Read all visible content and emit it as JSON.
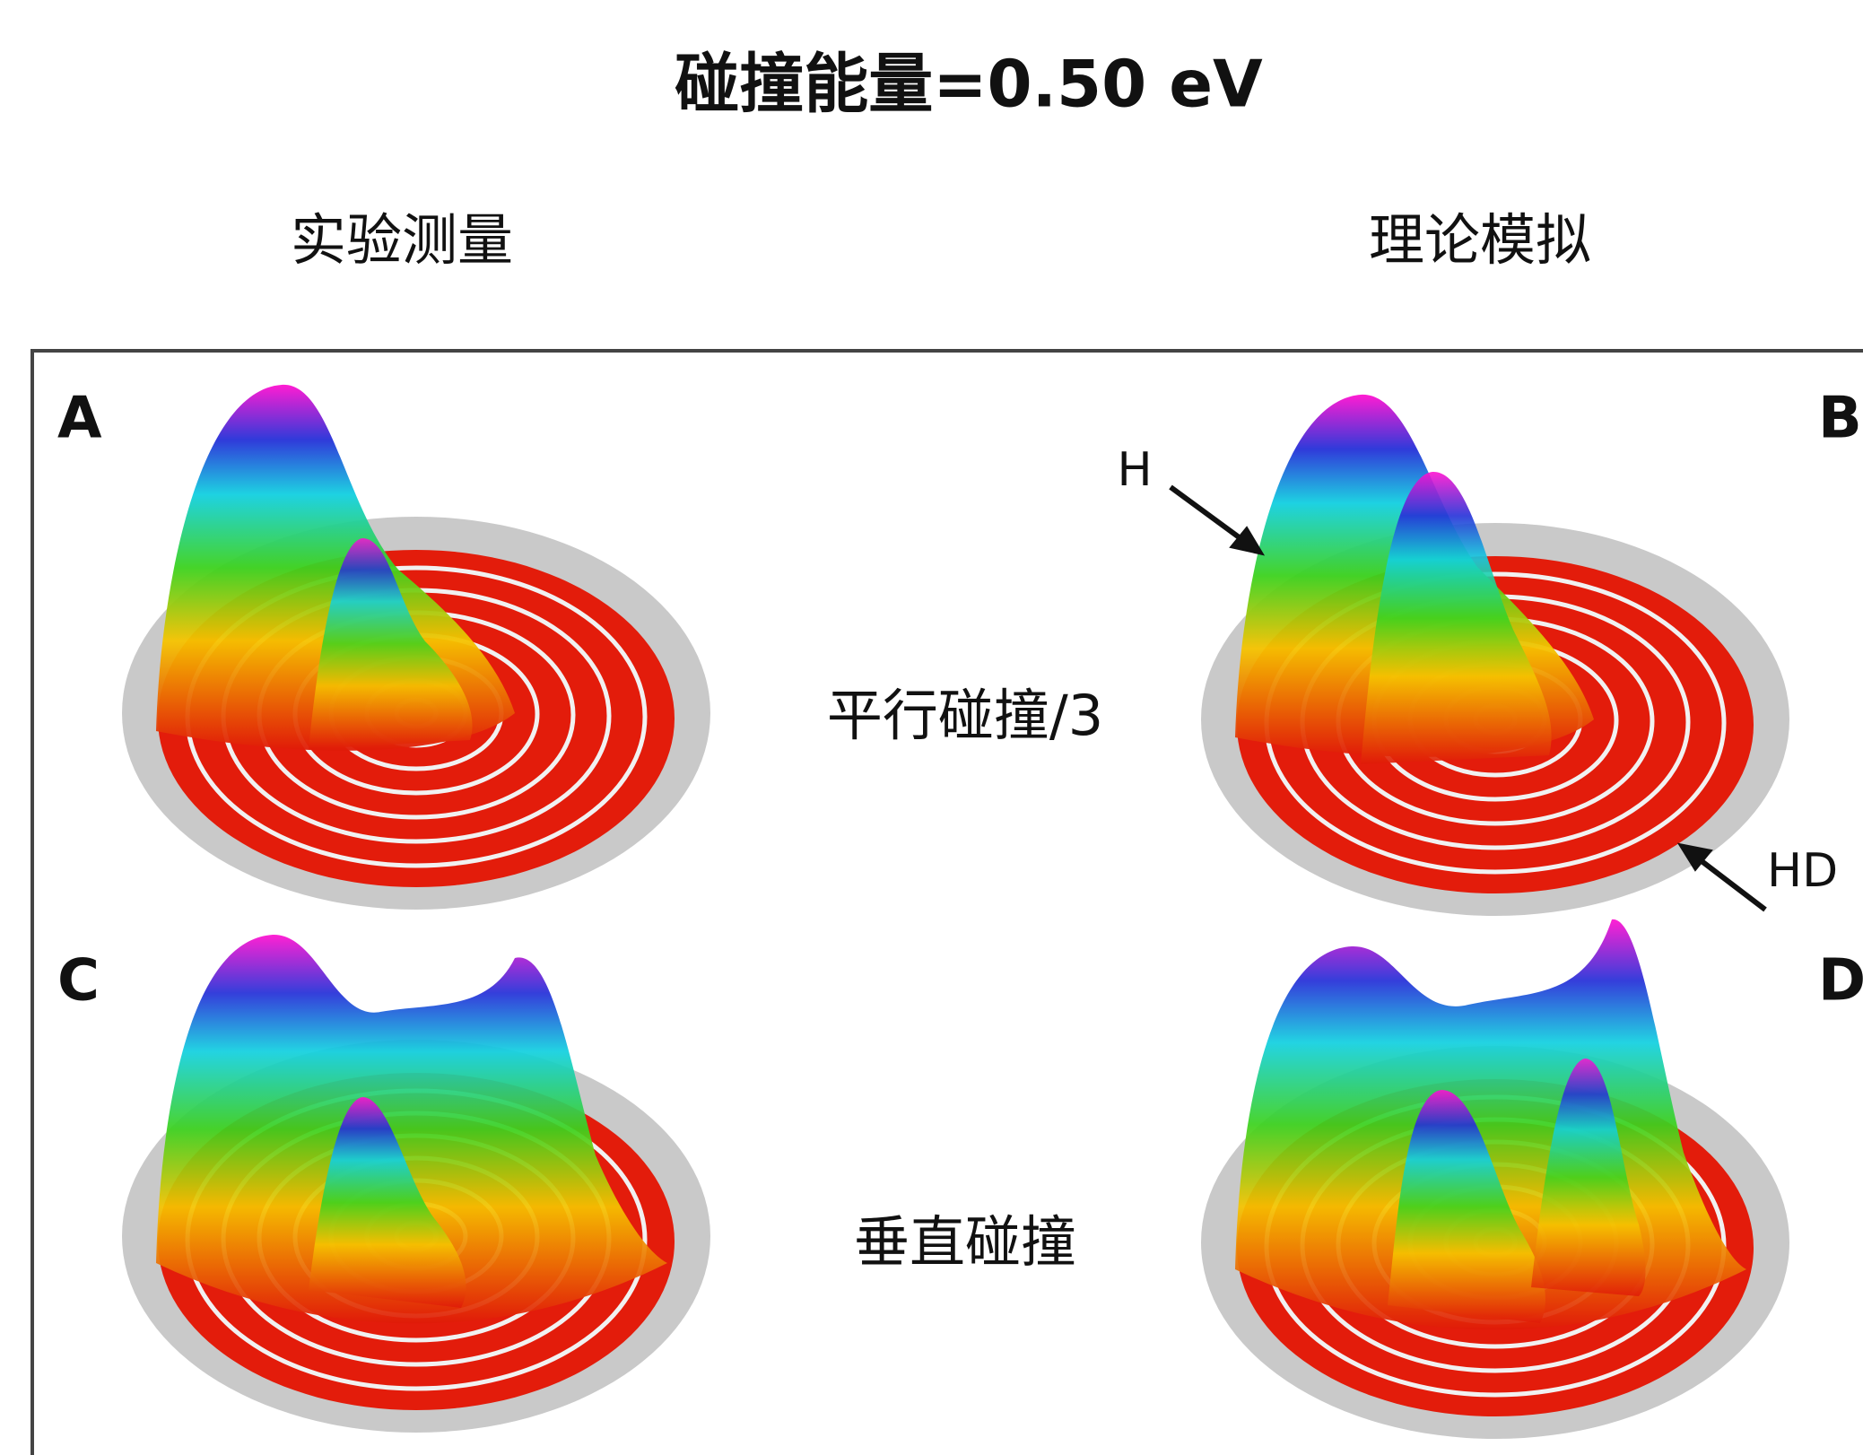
{
  "title": "碰撞能量=0.50 eV",
  "columns": [
    "实验测量",
    "理论模拟"
  ],
  "panels": [
    "A",
    "B",
    "C",
    "D"
  ],
  "rows": [
    "平行碰撞/3",
    "垂直碰撞"
  ],
  "annotations": [
    "H",
    "HD"
  ]
}
